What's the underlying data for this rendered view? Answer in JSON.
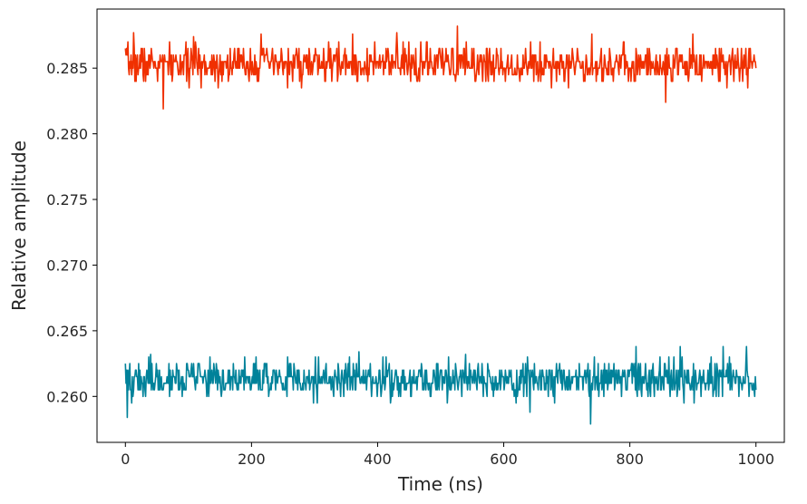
{
  "chart_data": {
    "type": "line",
    "title": "",
    "xlabel": "Time (ns)",
    "ylabel": "Relative amplitude",
    "xlim": [
      -45,
      1045
    ],
    "ylim": [
      0.2565,
      0.2895
    ],
    "xticks": [
      {
        "value": 0,
        "label": "0"
      },
      {
        "value": 200,
        "label": "200"
      },
      {
        "value": 400,
        "label": "400"
      },
      {
        "value": 600,
        "label": "600"
      },
      {
        "value": 800,
        "label": "800"
      },
      {
        "value": 1000,
        "label": "1000"
      }
    ],
    "yticks": [
      {
        "value": 0.26,
        "label": "0.260"
      },
      {
        "value": 0.265,
        "label": "0.265"
      },
      {
        "value": 0.27,
        "label": "0.270"
      },
      {
        "value": 0.275,
        "label": "0.275"
      },
      {
        "value": 0.28,
        "label": "0.280"
      },
      {
        "value": 0.285,
        "label": "0.285"
      }
    ],
    "grid": false,
    "series": [
      {
        "color": "#f03000",
        "x_start": 0,
        "x_end": 1000,
        "n_points": 1000,
        "mean": 0.2853,
        "jitter": 0.0007,
        "quantum": 0.0005,
        "seed": 7,
        "spikes": [
          {
            "x": 13,
            "y": 0.2877
          },
          {
            "x": 60,
            "y": 0.2819
          },
          {
            "x": 108,
            "y": 0.2874
          },
          {
            "x": 215,
            "y": 0.2876
          },
          {
            "x": 360,
            "y": 0.2876
          },
          {
            "x": 430,
            "y": 0.2877
          },
          {
            "x": 527,
            "y": 0.2882
          },
          {
            "x": 740,
            "y": 0.2876
          },
          {
            "x": 857,
            "y": 0.2824
          },
          {
            "x": 900,
            "y": 0.2876
          }
        ]
      },
      {
        "color": "#00829a",
        "x_start": 0,
        "x_end": 1000,
        "n_points": 1000,
        "mean": 0.2613,
        "jitter": 0.0007,
        "quantum": 0.0005,
        "seed": 19,
        "spikes": [
          {
            "x": 3,
            "y": 0.2584
          },
          {
            "x": 40,
            "y": 0.2632
          },
          {
            "x": 370,
            "y": 0.2634
          },
          {
            "x": 540,
            "y": 0.2632
          },
          {
            "x": 642,
            "y": 0.2588
          },
          {
            "x": 738,
            "y": 0.2579
          },
          {
            "x": 810,
            "y": 0.2638
          },
          {
            "x": 880,
            "y": 0.2638
          },
          {
            "x": 948,
            "y": 0.2638
          },
          {
            "x": 985,
            "y": 0.2638
          }
        ]
      }
    ]
  }
}
